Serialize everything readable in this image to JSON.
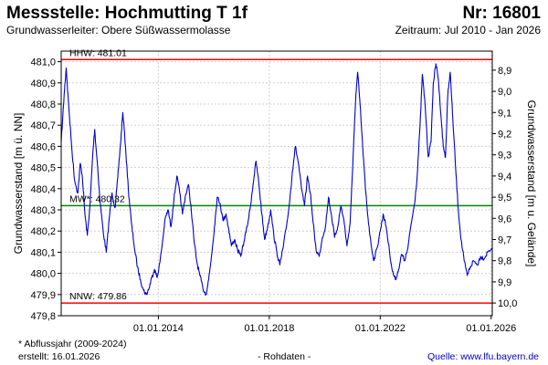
{
  "header": {
    "title": "Messstelle: Hochmutting T 1f",
    "number": "Nr: 16801",
    "aquifer": "Grundwasserleiter:   Obere Süßwassermolasse",
    "period": "Zeitraum: Jul 2010 - Jan 2026"
  },
  "footer": {
    "footnote": "* Abflussjahr (2009-2024)",
    "created": "erstellt:  16.01.2026",
    "rawdata": "- Rohdaten -",
    "source": "Quelle: www.lfu.bayern.de"
  },
  "chart_data": {
    "type": "line",
    "ylabel_left": "Grundwasserstand [m ü. NN]",
    "ylabel_right": "Grundwasserstand [m u. Gelände]",
    "xlim": [
      "2010-07-01",
      "2026-01-16"
    ],
    "ylim_left": [
      479.8,
      481.05
    ],
    "ylim_right": [
      10.06,
      8.81
    ],
    "left_ticks": [
      "479,8",
      "479,9",
      "480,0",
      "480,1",
      "480,2",
      "480,3",
      "480,4",
      "480,5",
      "480,6",
      "480,7",
      "480,8",
      "480,9",
      "481,0"
    ],
    "left_tick_values": [
      479.8,
      479.9,
      480.0,
      480.1,
      480.2,
      480.3,
      480.4,
      480.5,
      480.6,
      480.7,
      480.8,
      480.9,
      481.0
    ],
    "right_ticks": [
      "8,9",
      "9,0",
      "9,1",
      "9,2",
      "9,3",
      "9,4",
      "9,5",
      "9,6",
      "9,7",
      "9,8",
      "9,9",
      "10,0"
    ],
    "right_tick_values": [
      8.9,
      9.0,
      9.1,
      9.2,
      9.3,
      9.4,
      9.5,
      9.6,
      9.7,
      9.8,
      9.9,
      10.0
    ],
    "x_ticks": [
      "01.01.2014",
      "01.01.2018",
      "01.01.2022",
      "01.01.2026"
    ],
    "x_tick_dates": [
      "2014-01-01",
      "2018-01-01",
      "2022-01-01",
      "2026-01-01"
    ],
    "grid": true,
    "reference_lines": [
      {
        "label": "HHW: 481.01",
        "value": 481.01,
        "color": "#ff0000"
      },
      {
        "label": "MW*: 480.32",
        "value": 480.32,
        "color": "#008800"
      },
      {
        "label": "NNW: 479.86",
        "value": 479.86,
        "color": "#ff0000"
      }
    ],
    "series_color": "#0000cc",
    "points": [
      [
        "2010-07-01",
        480.62
      ],
      [
        "2010-08-10",
        480.85
      ],
      [
        "2010-09-05",
        480.97
      ],
      [
        "2010-10-10",
        480.78
      ],
      [
        "2010-11-20",
        480.58
      ],
      [
        "2010-12-25",
        480.44
      ],
      [
        "2011-02-05",
        480.38
      ],
      [
        "2011-03-10",
        480.52
      ],
      [
        "2011-04-05",
        480.46
      ],
      [
        "2011-05-10",
        480.28
      ],
      [
        "2011-06-10",
        480.18
      ],
      [
        "2011-07-15",
        480.32
      ],
      [
        "2011-08-20",
        480.56
      ],
      [
        "2011-09-15",
        480.68
      ],
      [
        "2011-10-20",
        480.52
      ],
      [
        "2011-11-25",
        480.34
      ],
      [
        "2012-01-05",
        480.2
      ],
      [
        "2012-02-15",
        480.1
      ],
      [
        "2012-03-25",
        480.26
      ],
      [
        "2012-05-01",
        480.38
      ],
      [
        "2012-06-10",
        480.31
      ],
      [
        "2012-07-15",
        480.45
      ],
      [
        "2012-08-20",
        480.61
      ],
      [
        "2012-09-20",
        480.76
      ],
      [
        "2012-10-25",
        480.6
      ],
      [
        "2012-12-01",
        480.4
      ],
      [
        "2013-01-10",
        480.24
      ],
      [
        "2013-02-20",
        480.12
      ],
      [
        "2013-04-01",
        480.03
      ],
      [
        "2013-05-10",
        479.97
      ],
      [
        "2013-06-20",
        479.92
      ],
      [
        "2013-07-25",
        479.9
      ],
      [
        "2013-09-01",
        479.93
      ],
      [
        "2013-10-05",
        479.98
      ],
      [
        "2013-11-10",
        480.02
      ],
      [
        "2013-12-15",
        479.98
      ],
      [
        "2014-01-20",
        480.05
      ],
      [
        "2014-02-25",
        480.15
      ],
      [
        "2014-04-01",
        480.26
      ],
      [
        "2014-05-10",
        480.3
      ],
      [
        "2014-06-15",
        480.22
      ],
      [
        "2014-07-25",
        480.35
      ],
      [
        "2014-09-01",
        480.46
      ],
      [
        "2014-10-10",
        480.38
      ],
      [
        "2014-11-15",
        480.28
      ],
      [
        "2014-12-20",
        480.36
      ],
      [
        "2015-02-01",
        480.42
      ],
      [
        "2015-03-10",
        480.3
      ],
      [
        "2015-04-20",
        480.14
      ],
      [
        "2015-05-25",
        480.05
      ],
      [
        "2015-07-01",
        479.99
      ],
      [
        "2015-08-10",
        479.93
      ],
      [
        "2015-09-20",
        479.9
      ],
      [
        "2015-10-25",
        479.97
      ],
      [
        "2015-12-01",
        480.08
      ],
      [
        "2016-01-10",
        480.22
      ],
      [
        "2016-02-15",
        480.36
      ],
      [
        "2016-03-25",
        480.33
      ],
      [
        "2016-05-01",
        480.25
      ],
      [
        "2016-06-10",
        480.28
      ],
      [
        "2016-07-15",
        480.21
      ],
      [
        "2016-08-20",
        480.13
      ],
      [
        "2016-10-01",
        480.16
      ],
      [
        "2016-11-10",
        480.11
      ],
      [
        "2016-12-20",
        480.08
      ],
      [
        "2017-02-01",
        480.15
      ],
      [
        "2017-03-15",
        480.22
      ],
      [
        "2017-04-25",
        480.31
      ],
      [
        "2017-06-01",
        480.42
      ],
      [
        "2017-07-10",
        480.53
      ],
      [
        "2017-08-15",
        480.43
      ],
      [
        "2017-09-25",
        480.28
      ],
      [
        "2017-11-01",
        480.16
      ],
      [
        "2017-12-10",
        480.22
      ],
      [
        "2018-01-20",
        480.3
      ],
      [
        "2018-03-01",
        480.18
      ],
      [
        "2018-04-10",
        480.1
      ],
      [
        "2018-05-20",
        480.04
      ],
      [
        "2018-07-01",
        480.12
      ],
      [
        "2018-08-10",
        480.21
      ],
      [
        "2018-09-20",
        480.32
      ],
      [
        "2018-11-01",
        480.48
      ],
      [
        "2018-12-10",
        480.6
      ],
      [
        "2019-01-20",
        480.52
      ],
      [
        "2019-03-01",
        480.4
      ],
      [
        "2019-04-10",
        480.32
      ],
      [
        "2019-05-20",
        480.46
      ],
      [
        "2019-06-25",
        480.38
      ],
      [
        "2019-08-01",
        480.24
      ],
      [
        "2019-09-10",
        480.11
      ],
      [
        "2019-10-20",
        480.08
      ],
      [
        "2019-12-01",
        480.17
      ],
      [
        "2020-01-10",
        480.22
      ],
      [
        "2020-02-20",
        480.36
      ],
      [
        "2020-04-01",
        480.27
      ],
      [
        "2020-05-10",
        480.17
      ],
      [
        "2020-06-20",
        480.22
      ],
      [
        "2020-08-01",
        480.32
      ],
      [
        "2020-09-10",
        480.25
      ],
      [
        "2020-10-20",
        480.13
      ],
      [
        "2020-12-01",
        480.24
      ],
      [
        "2021-01-10",
        480.56
      ],
      [
        "2021-02-15",
        480.85
      ],
      [
        "2021-03-10",
        480.95
      ],
      [
        "2021-04-10",
        480.8
      ],
      [
        "2021-05-15",
        480.6
      ],
      [
        "2021-06-20",
        480.4
      ],
      [
        "2021-07-25",
        480.26
      ],
      [
        "2021-09-01",
        480.14
      ],
      [
        "2021-10-10",
        480.06
      ],
      [
        "2021-11-20",
        480.12
      ],
      [
        "2022-01-01",
        480.2
      ],
      [
        "2022-02-10",
        480.28
      ],
      [
        "2022-03-20",
        480.22
      ],
      [
        "2022-05-01",
        480.11
      ],
      [
        "2022-06-10",
        480.01
      ],
      [
        "2022-07-20",
        479.97
      ],
      [
        "2022-09-01",
        480.02
      ],
      [
        "2022-10-10",
        480.09
      ],
      [
        "2022-11-20",
        480.06
      ],
      [
        "2023-01-01",
        480.12
      ],
      [
        "2023-02-10",
        480.23
      ],
      [
        "2023-03-25",
        480.32
      ],
      [
        "2023-05-01",
        480.45
      ],
      [
        "2023-06-10",
        480.7
      ],
      [
        "2023-07-10",
        480.94
      ],
      [
        "2023-08-15",
        480.8
      ],
      [
        "2023-09-25",
        480.55
      ],
      [
        "2023-11-01",
        480.62
      ],
      [
        "2023-12-01",
        480.9
      ],
      [
        "2024-01-05",
        480.99
      ],
      [
        "2024-02-05",
        480.92
      ],
      [
        "2024-03-10",
        480.75
      ],
      [
        "2024-04-10",
        480.6
      ],
      [
        "2024-05-10",
        480.55
      ],
      [
        "2024-06-10",
        480.85
      ],
      [
        "2024-07-10",
        480.95
      ],
      [
        "2024-08-15",
        480.72
      ],
      [
        "2024-09-20",
        480.5
      ],
      [
        "2024-10-25",
        480.3
      ],
      [
        "2024-12-01",
        480.16
      ],
      [
        "2025-01-10",
        480.06
      ],
      [
        "2025-02-20",
        479.99
      ],
      [
        "2025-04-01",
        480.03
      ],
      [
        "2025-05-15",
        480.06
      ],
      [
        "2025-07-01",
        480.04
      ],
      [
        "2025-08-15",
        480.08
      ],
      [
        "2025-10-01",
        480.07
      ],
      [
        "2025-11-15",
        480.1
      ],
      [
        "2026-01-10",
        480.12
      ]
    ]
  }
}
